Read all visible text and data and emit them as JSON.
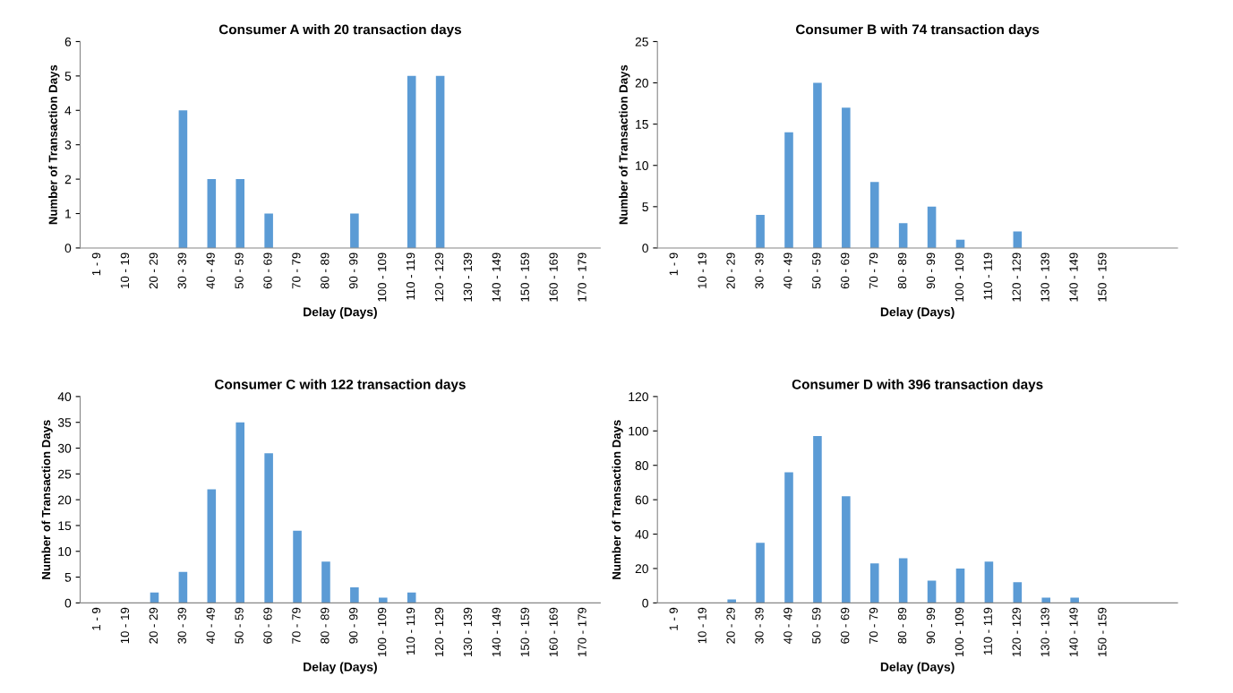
{
  "chart_data": [
    {
      "type": "bar",
      "title": "Consumer A with 20 transaction days",
      "xlabel": "Delay (Days)",
      "ylabel": "Number of Transaction Days",
      "categories": [
        "1 - 9",
        "10 - 19",
        "20 - 29",
        "30 - 39",
        "40 - 49",
        "50 - 59",
        "60 - 69",
        "70 - 79",
        "80 - 89",
        "90 - 99",
        "100 - 109",
        "110 - 119",
        "120 - 129",
        "130 - 139",
        "140 - 149",
        "150 - 159",
        "160 - 169",
        "170 - 179"
      ],
      "values": [
        0,
        0,
        0,
        4,
        2,
        2,
        1,
        0,
        0,
        1,
        0,
        5,
        5,
        0,
        0,
        0,
        0,
        0
      ],
      "color": "#5b9bd5",
      "ylim": [
        0,
        6
      ],
      "yticks": [
        0,
        1,
        2,
        3,
        4,
        5,
        6
      ],
      "grid": false,
      "legend": false
    },
    {
      "type": "bar",
      "title": "Consumer B with 74 transaction days",
      "xlabel": "Delay (Days)",
      "ylabel": "Number of Transaction Days",
      "categories": [
        "1 - 9",
        "10 - 19",
        "20 - 29",
        "30 - 39",
        "40 - 49",
        "50 - 59",
        "60 - 69",
        "70 - 79",
        "80 - 89",
        "90 - 99",
        "100 - 109",
        "110 - 119",
        "120 - 129",
        "130 - 139",
        "140 - 149",
        "150 - 159",
        null,
        null
      ],
      "values": [
        0,
        0,
        0,
        4,
        14,
        20,
        17,
        8,
        3,
        5,
        1,
        0,
        2,
        0,
        0,
        0,
        null,
        null
      ],
      "color": "#5b9bd5",
      "ylim": [
        0,
        25
      ],
      "yticks": [
        0,
        5,
        10,
        15,
        20,
        25
      ],
      "grid": false,
      "legend": false
    },
    {
      "type": "bar",
      "title": "Consumer C with 122 transaction days",
      "xlabel": "Delay (Days)",
      "ylabel": "Number of Transaction Days",
      "categories": [
        "1 - 9",
        "10 - 19",
        "20 - 29",
        "30 - 39",
        "40 - 49",
        "50 - 59",
        "60 - 69",
        "70 - 79",
        "80 - 89",
        "90 - 99",
        "100 - 109",
        "110 - 119",
        "120 - 129",
        "130 - 139",
        "140 - 149",
        "150 - 159",
        "160 - 169",
        "170 - 179"
      ],
      "values": [
        0,
        0,
        2,
        6,
        22,
        35,
        29,
        14,
        8,
        3,
        1,
        2,
        0,
        0,
        0,
        0,
        0,
        0
      ],
      "color": "#5b9bd5",
      "ylim": [
        0,
        40
      ],
      "yticks": [
        0,
        5,
        10,
        15,
        20,
        25,
        30,
        35,
        40
      ],
      "grid": false,
      "legend": false
    },
    {
      "type": "bar",
      "title": "Consumer D with 396 transaction days",
      "xlabel": "Delay (Days)",
      "ylabel": "Number of Transaction Days",
      "categories": [
        "1 - 9",
        "10 - 19",
        "20 - 29",
        "30 - 39",
        "40 - 49",
        "50 - 59",
        "60 - 69",
        "70 - 79",
        "80 - 89",
        "90 - 99",
        "100 - 109",
        "110 - 119",
        "120 - 129",
        "130 - 139",
        "140 - 149",
        "150 - 159",
        null,
        null
      ],
      "values": [
        0,
        0,
        2,
        35,
        76,
        97,
        62,
        23,
        26,
        13,
        20,
        24,
        12,
        3,
        3,
        0,
        null,
        null
      ],
      "color": "#5b9bd5",
      "ylim": [
        0,
        120
      ],
      "yticks": [
        0,
        20,
        40,
        60,
        80,
        100,
        120
      ],
      "grid": false,
      "legend": false
    }
  ]
}
